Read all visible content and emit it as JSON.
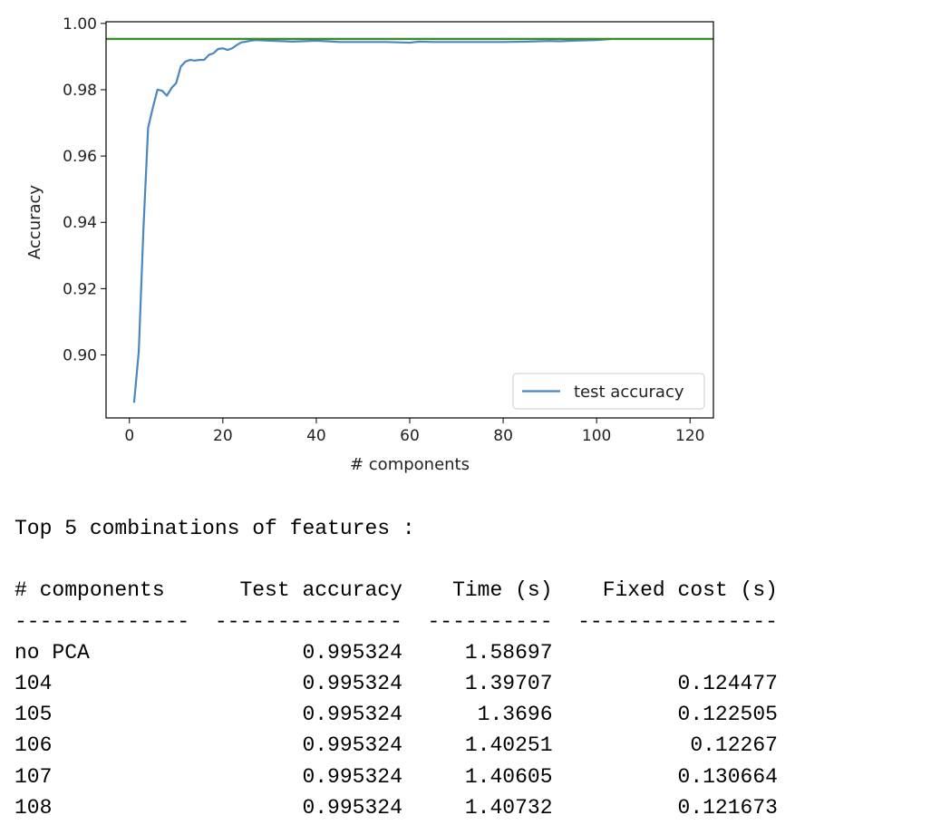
{
  "chart_data": {
    "type": "line",
    "xlabel": "# components",
    "ylabel": "Accuracy",
    "xlim": [
      -5,
      125
    ],
    "ylim": [
      0.881,
      1.0005
    ],
    "xticks": [
      0,
      20,
      40,
      60,
      80,
      100,
      120
    ],
    "yticks": [
      0.9,
      0.92,
      0.94,
      0.96,
      0.98,
      1.0
    ],
    "ytick_labels": [
      "0.90",
      "0.92",
      "0.94",
      "0.96",
      "0.98",
      "1.00"
    ],
    "grid": false,
    "legend": "lower-right",
    "series": [
      {
        "name": "test accuracy",
        "color": "#4a86c0",
        "x": [
          1,
          2,
          3,
          4,
          5,
          6,
          7,
          8,
          9,
          10,
          11,
          12,
          13,
          14,
          15,
          16,
          17,
          18,
          19,
          20,
          21,
          22,
          23,
          24,
          25,
          26,
          27,
          30,
          35,
          40,
          45,
          50,
          55,
          60,
          62,
          65,
          70,
          75,
          80,
          85,
          90,
          92,
          95,
          100,
          103
        ],
        "y": [
          0.8856,
          0.901,
          0.938,
          0.9685,
          0.9745,
          0.98,
          0.9797,
          0.9782,
          0.9805,
          0.982,
          0.987,
          0.9885,
          0.989,
          0.9888,
          0.989,
          0.989,
          0.9905,
          0.991,
          0.9923,
          0.9925,
          0.992,
          0.9925,
          0.9935,
          0.9943,
          0.9945,
          0.9948,
          0.995,
          0.9948,
          0.9945,
          0.9948,
          0.9944,
          0.9944,
          0.9944,
          0.9942,
          0.9945,
          0.9944,
          0.9944,
          0.9944,
          0.9944,
          0.9945,
          0.9947,
          0.9946,
          0.9948,
          0.995,
          0.9953
        ]
      },
      {
        "name": "",
        "color": "#3c8c2e",
        "x": [
          -5,
          125
        ],
        "y": [
          0.99532,
          0.99532
        ]
      }
    ]
  },
  "output": {
    "heading": "Top 5 combinations of features :",
    "columns": [
      "# components",
      "Test accuracy",
      "Time (s)",
      "Fixed cost (s)"
    ],
    "rows": [
      [
        "no PCA",
        "0.995324",
        "1.58697",
        ""
      ],
      [
        "104",
        "0.995324",
        "1.39707",
        "0.124477"
      ],
      [
        "105",
        "0.995324",
        "1.3696",
        "0.122505"
      ],
      [
        "106",
        "0.995324",
        "1.40251",
        "0.12267"
      ],
      [
        "107",
        "0.995324",
        "1.40605",
        "0.130664"
      ],
      [
        "108",
        "0.995324",
        "1.40732",
        "0.121673"
      ]
    ]
  }
}
